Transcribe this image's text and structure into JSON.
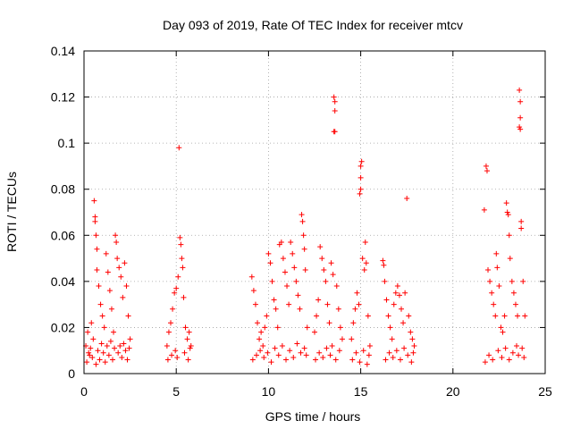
{
  "chart_data": {
    "type": "scatter",
    "title": "Day 093 of 2019, Rate Of TEC Index for receiver mtcv",
    "xlabel": "GPS time / hours",
    "ylabel": "ROTI / TECUs",
    "xlim": [
      0,
      25
    ],
    "ylim": [
      0,
      0.14
    ],
    "xticks": [
      0,
      5,
      10,
      15,
      20,
      25
    ],
    "xtick_labels": [
      "0",
      "5",
      "10",
      "15",
      "20",
      "25"
    ],
    "yticks": [
      0,
      0.02,
      0.04,
      0.06,
      0.08,
      0.1,
      0.12,
      0.14
    ],
    "ytick_labels": [
      "0",
      "0.02",
      "0.04",
      "0.06",
      "0.08",
      "0.1",
      "0.12",
      "0.14"
    ],
    "grid": true,
    "marker": "+",
    "color": "#ff0000",
    "series": [
      {
        "name": "ROTI",
        "points": [
          [
            0.1,
            0.012
          ],
          [
            0.2,
            0.018
          ],
          [
            0.3,
            0.008
          ],
          [
            0.4,
            0.022
          ],
          [
            0.5,
            0.015
          ],
          [
            0.55,
            0.075
          ],
          [
            0.6,
            0.068
          ],
          [
            0.6,
            0.066
          ],
          [
            0.65,
            0.06
          ],
          [
            0.7,
            0.054
          ],
          [
            0.7,
            0.045
          ],
          [
            0.8,
            0.038
          ],
          [
            0.9,
            0.03
          ],
          [
            1.0,
            0.025
          ],
          [
            1.1,
            0.02
          ],
          [
            1.2,
            0.052
          ],
          [
            1.3,
            0.044
          ],
          [
            1.4,
            0.036
          ],
          [
            1.5,
            0.028
          ],
          [
            1.6,
            0.018
          ],
          [
            1.7,
            0.06
          ],
          [
            1.75,
            0.057
          ],
          [
            1.8,
            0.05
          ],
          [
            1.9,
            0.046
          ],
          [
            2.0,
            0.042
          ],
          [
            2.1,
            0.033
          ],
          [
            2.2,
            0.048
          ],
          [
            2.3,
            0.038
          ],
          [
            2.4,
            0.025
          ],
          [
            2.5,
            0.015
          ],
          [
            0.15,
            0.005
          ],
          [
            0.25,
            0.009
          ],
          [
            0.35,
            0.011
          ],
          [
            0.45,
            0.007
          ],
          [
            0.65,
            0.004
          ],
          [
            0.75,
            0.01
          ],
          [
            0.85,
            0.006
          ],
          [
            0.95,
            0.013
          ],
          [
            1.05,
            0.009
          ],
          [
            1.15,
            0.005
          ],
          [
            1.25,
            0.012
          ],
          [
            1.35,
            0.008
          ],
          [
            1.45,
            0.014
          ],
          [
            1.55,
            0.006
          ],
          [
            1.65,
            0.011
          ],
          [
            1.85,
            0.009
          ],
          [
            1.95,
            0.012
          ],
          [
            2.05,
            0.007
          ],
          [
            2.15,
            0.013
          ],
          [
            2.25,
            0.01
          ],
          [
            2.35,
            0.006
          ],
          [
            2.45,
            0.011
          ],
          [
            4.5,
            0.012
          ],
          [
            4.6,
            0.018
          ],
          [
            4.7,
            0.022
          ],
          [
            4.8,
            0.028
          ],
          [
            4.9,
            0.035
          ],
          [
            5.0,
            0.037
          ],
          [
            5.1,
            0.042
          ],
          [
            5.15,
            0.098
          ],
          [
            5.2,
            0.059
          ],
          [
            5.25,
            0.056
          ],
          [
            5.3,
            0.05
          ],
          [
            5.35,
            0.046
          ],
          [
            5.4,
            0.033
          ],
          [
            5.5,
            0.02
          ],
          [
            5.6,
            0.015
          ],
          [
            5.7,
            0.018
          ],
          [
            5.8,
            0.012
          ],
          [
            4.55,
            0.006
          ],
          [
            4.75,
            0.008
          ],
          [
            4.95,
            0.01
          ],
          [
            5.05,
            0.007
          ],
          [
            5.45,
            0.009
          ],
          [
            5.65,
            0.006
          ],
          [
            5.75,
            0.011
          ],
          [
            9.1,
            0.042
          ],
          [
            9.2,
            0.036
          ],
          [
            9.3,
            0.03
          ],
          [
            9.4,
            0.022
          ],
          [
            9.5,
            0.015
          ],
          [
            9.6,
            0.018
          ],
          [
            9.7,
            0.012
          ],
          [
            9.8,
            0.02
          ],
          [
            9.9,
            0.025
          ],
          [
            10.0,
            0.052
          ],
          [
            10.1,
            0.048
          ],
          [
            10.2,
            0.04
          ],
          [
            10.3,
            0.032
          ],
          [
            10.4,
            0.028
          ],
          [
            10.5,
            0.02
          ],
          [
            10.6,
            0.056
          ],
          [
            10.7,
            0.057
          ],
          [
            10.8,
            0.05
          ],
          [
            10.9,
            0.044
          ],
          [
            11.0,
            0.038
          ],
          [
            11.1,
            0.03
          ],
          [
            11.2,
            0.057
          ],
          [
            11.3,
            0.052
          ],
          [
            11.4,
            0.046
          ],
          [
            11.5,
            0.04
          ],
          [
            11.6,
            0.034
          ],
          [
            11.7,
            0.028
          ],
          [
            11.8,
            0.069
          ],
          [
            11.85,
            0.066
          ],
          [
            11.9,
            0.06
          ],
          [
            11.95,
            0.054
          ],
          [
            12.0,
            0.045
          ],
          [
            12.1,
            0.02
          ],
          [
            9.15,
            0.006
          ],
          [
            9.35,
            0.008
          ],
          [
            9.55,
            0.01
          ],
          [
            9.75,
            0.007
          ],
          [
            9.95,
            0.009
          ],
          [
            10.15,
            0.005
          ],
          [
            10.35,
            0.011
          ],
          [
            10.55,
            0.008
          ],
          [
            10.75,
            0.012
          ],
          [
            10.95,
            0.006
          ],
          [
            11.15,
            0.01
          ],
          [
            11.35,
            0.007
          ],
          [
            11.55,
            0.013
          ],
          [
            11.75,
            0.009
          ],
          [
            11.95,
            0.011
          ],
          [
            12.05,
            0.008
          ],
          [
            12.5,
            0.018
          ],
          [
            12.6,
            0.025
          ],
          [
            12.7,
            0.032
          ],
          [
            12.8,
            0.055
          ],
          [
            12.9,
            0.05
          ],
          [
            13.0,
            0.045
          ],
          [
            13.1,
            0.04
          ],
          [
            13.2,
            0.03
          ],
          [
            13.3,
            0.022
          ],
          [
            13.4,
            0.048
          ],
          [
            13.5,
            0.043
          ],
          [
            13.55,
            0.12
          ],
          [
            13.6,
            0.118
          ],
          [
            13.6,
            0.114
          ],
          [
            13.55,
            0.105
          ],
          [
            13.6,
            0.105
          ],
          [
            13.7,
            0.038
          ],
          [
            13.8,
            0.028
          ],
          [
            13.9,
            0.02
          ],
          [
            14.0,
            0.015
          ],
          [
            12.55,
            0.006
          ],
          [
            12.75,
            0.009
          ],
          [
            12.95,
            0.007
          ],
          [
            13.15,
            0.011
          ],
          [
            13.35,
            0.008
          ],
          [
            13.45,
            0.012
          ],
          [
            13.65,
            0.006
          ],
          [
            13.85,
            0.01
          ],
          [
            14.5,
            0.015
          ],
          [
            14.6,
            0.022
          ],
          [
            14.7,
            0.028
          ],
          [
            14.8,
            0.035
          ],
          [
            14.9,
            0.03
          ],
          [
            14.95,
            0.078
          ],
          [
            15.0,
            0.08
          ],
          [
            15.0,
            0.085
          ],
          [
            15.0,
            0.09
          ],
          [
            15.05,
            0.092
          ],
          [
            15.1,
            0.05
          ],
          [
            15.2,
            0.045
          ],
          [
            15.25,
            0.057
          ],
          [
            15.3,
            0.048
          ],
          [
            15.4,
            0.025
          ],
          [
            15.5,
            0.012
          ],
          [
            14.55,
            0.006
          ],
          [
            14.75,
            0.009
          ],
          [
            14.95,
            0.005
          ],
          [
            15.15,
            0.01
          ],
          [
            15.35,
            0.004
          ],
          [
            15.45,
            0.008
          ],
          [
            16.2,
            0.049
          ],
          [
            16.25,
            0.047
          ],
          [
            16.3,
            0.04
          ],
          [
            16.4,
            0.032
          ],
          [
            16.5,
            0.025
          ],
          [
            16.6,
            0.02
          ],
          [
            16.7,
            0.015
          ],
          [
            16.8,
            0.03
          ],
          [
            16.9,
            0.035
          ],
          [
            17.0,
            0.038
          ],
          [
            17.1,
            0.034
          ],
          [
            17.2,
            0.028
          ],
          [
            17.3,
            0.022
          ],
          [
            17.4,
            0.035
          ],
          [
            17.5,
            0.076
          ],
          [
            17.6,
            0.025
          ],
          [
            17.7,
            0.018
          ],
          [
            17.8,
            0.015
          ],
          [
            17.9,
            0.012
          ],
          [
            16.35,
            0.006
          ],
          [
            16.55,
            0.009
          ],
          [
            16.75,
            0.007
          ],
          [
            16.95,
            0.01
          ],
          [
            17.15,
            0.006
          ],
          [
            17.35,
            0.011
          ],
          [
            17.55,
            0.008
          ],
          [
            17.75,
            0.005
          ],
          [
            17.85,
            0.009
          ],
          [
            21.7,
            0.071
          ],
          [
            21.8,
            0.09
          ],
          [
            21.85,
            0.088
          ],
          [
            21.9,
            0.045
          ],
          [
            22.0,
            0.04
          ],
          [
            22.1,
            0.035
          ],
          [
            22.2,
            0.03
          ],
          [
            22.3,
            0.025
          ],
          [
            22.35,
            0.052
          ],
          [
            22.4,
            0.046
          ],
          [
            22.5,
            0.038
          ],
          [
            22.6,
            0.02
          ],
          [
            22.7,
            0.018
          ],
          [
            22.8,
            0.025
          ],
          [
            22.9,
            0.074
          ],
          [
            22.95,
            0.07
          ],
          [
            23.0,
            0.069
          ],
          [
            23.05,
            0.06
          ],
          [
            23.1,
            0.05
          ],
          [
            23.2,
            0.04
          ],
          [
            23.3,
            0.035
          ],
          [
            23.4,
            0.03
          ],
          [
            23.5,
            0.025
          ],
          [
            23.6,
            0.123
          ],
          [
            23.65,
            0.118
          ],
          [
            23.65,
            0.111
          ],
          [
            23.6,
            0.107
          ],
          [
            23.65,
            0.106
          ],
          [
            23.7,
            0.066
          ],
          [
            23.7,
            0.063
          ],
          [
            23.8,
            0.04
          ],
          [
            23.9,
            0.025
          ],
          [
            21.75,
            0.005
          ],
          [
            21.95,
            0.008
          ],
          [
            22.15,
            0.006
          ],
          [
            22.45,
            0.01
          ],
          [
            22.65,
            0.007
          ],
          [
            22.85,
            0.011
          ],
          [
            23.05,
            0.006
          ],
          [
            23.25,
            0.009
          ],
          [
            23.45,
            0.012
          ],
          [
            23.55,
            0.008
          ],
          [
            23.75,
            0.011
          ],
          [
            23.85,
            0.007
          ]
        ]
      }
    ]
  }
}
